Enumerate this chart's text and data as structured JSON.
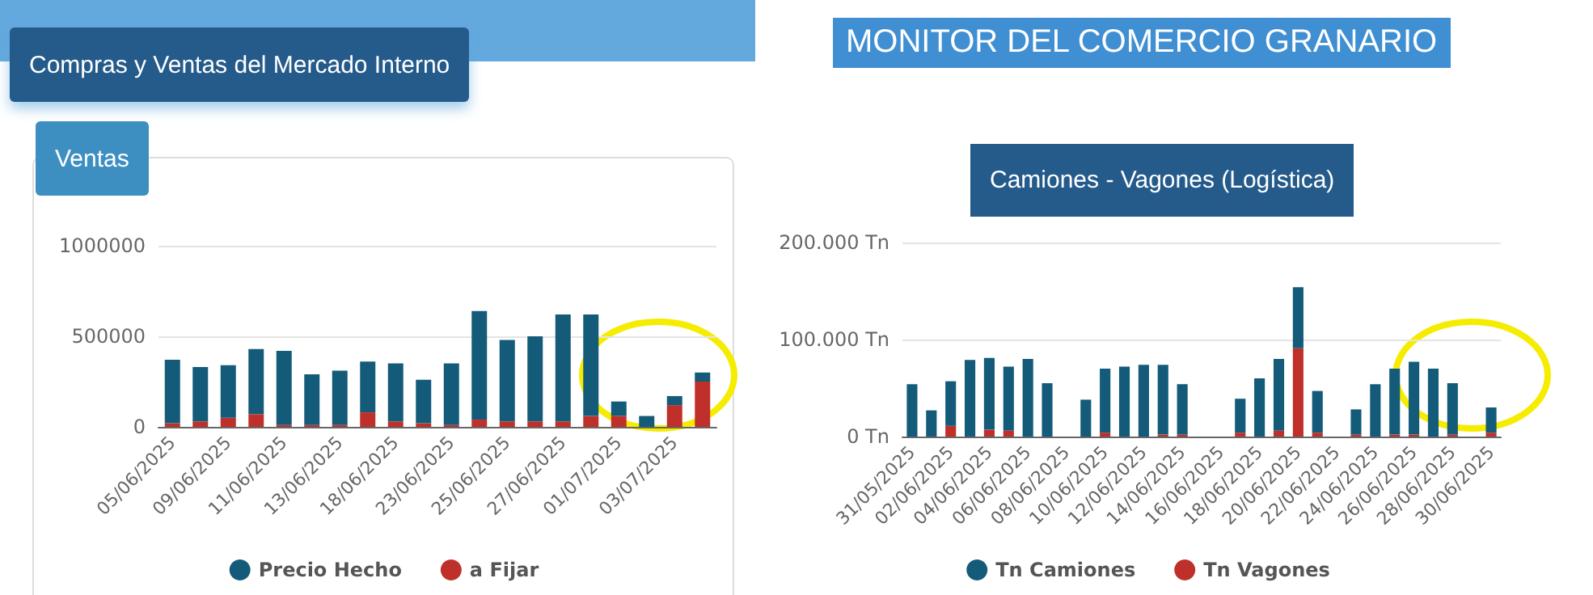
{
  "chart_data": [
    {
      "type": "bar",
      "title": "Ventas",
      "annotations": [
        "Compras y Ventas del Mercado Interno"
      ],
      "stacked": true,
      "categories": [
        "05/06/2025",
        null,
        "09/06/2025",
        null,
        "11/06/2025",
        null,
        "13/06/2025",
        null,
        "18/06/2025",
        null,
        "23/06/2025",
        null,
        "25/06/2025",
        null,
        "27/06/2025",
        null,
        "01/07/2025",
        null,
        "03/07/2025",
        null
      ],
      "series": [
        {
          "name": "a Fijar",
          "color": "#c0302a",
          "values": [
            20000,
            30000,
            50000,
            70000,
            10000,
            10000,
            10000,
            80000,
            30000,
            20000,
            10000,
            40000,
            30000,
            30000,
            30000,
            60000,
            60000,
            0,
            120000,
            250000
          ]
        },
        {
          "name": "Precio Hecho",
          "color": "#135b78",
          "values": [
            350000,
            300000,
            290000,
            360000,
            410000,
            280000,
            300000,
            280000,
            320000,
            240000,
            340000,
            600000,
            450000,
            470000,
            590000,
            560000,
            80000,
            60000,
            50000,
            50000
          ]
        }
      ],
      "ylim": [
        0,
        1000000
      ],
      "yticks": [
        0,
        500000,
        1000000
      ],
      "grid": "y",
      "legend": "bottom"
    },
    {
      "type": "bar",
      "title": "Camiones - Vagones (Logística)",
      "annotations": [
        "MONITOR DEL COMERCIO GRANARIO"
      ],
      "stacked": true,
      "categories": [
        "31/05/2025",
        null,
        "02/06/2025",
        null,
        "04/06/2025",
        null,
        "06/06/2025",
        null,
        "08/06/2025",
        null,
        "10/06/2025",
        null,
        "12/06/2025",
        null,
        "14/06/2025",
        null,
        "16/06/2025",
        null,
        "18/06/2025",
        null,
        "20/06/2025",
        null,
        "22/06/2025",
        null,
        "24/06/2025",
        null,
        "26/06/2025",
        null,
        "28/06/2025",
        null,
        "30/06/2025"
      ],
      "series": [
        {
          "name": "Tn Vagones",
          "color": "#c0302a",
          "values": [
            0,
            0,
            11000,
            0,
            7000,
            6000,
            0,
            0,
            0,
            0,
            4000,
            0,
            0,
            2000,
            2000,
            0,
            0,
            4000,
            0,
            6000,
            91000,
            4000,
            0,
            2000,
            0,
            2000,
            2000,
            0,
            2000,
            0,
            4000
          ]
        },
        {
          "name": "Tn Camiones",
          "color": "#135b78",
          "values": [
            54000,
            27000,
            46000,
            79000,
            74000,
            66000,
            80000,
            55000,
            0,
            38000,
            66000,
            72000,
            74000,
            72000,
            52000,
            0,
            0,
            35000,
            60000,
            74000,
            63000,
            43000,
            0,
            26000,
            54000,
            68000,
            75000,
            70000,
            53000,
            0,
            26000
          ]
        }
      ],
      "ylim": [
        0,
        200000
      ],
      "yticks": [
        {
          "value": 0,
          "label": "0 Tn"
        },
        {
          "value": 100000,
          "label": "100.000 Tn"
        },
        {
          "value": 200000,
          "label": "200.000 Tn"
        }
      ],
      "grid": "y",
      "legend": "bottom"
    }
  ]
}
